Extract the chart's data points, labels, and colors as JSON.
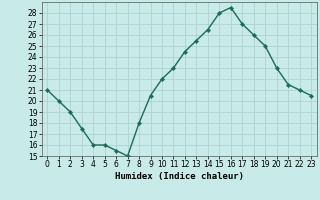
{
  "x": [
    0,
    1,
    2,
    3,
    4,
    5,
    6,
    7,
    8,
    9,
    10,
    11,
    12,
    13,
    14,
    15,
    16,
    17,
    18,
    19,
    20,
    21,
    22,
    23
  ],
  "y": [
    21,
    20,
    19,
    17.5,
    16,
    16,
    15.5,
    15,
    18,
    20.5,
    22,
    23,
    24.5,
    25.5,
    26.5,
    28,
    28.5,
    27,
    26,
    25,
    23,
    21.5,
    21,
    20.5
  ],
  "xlabel": "Humidex (Indice chaleur)",
  "xlim": [
    -0.5,
    23.5
  ],
  "ylim": [
    15,
    29
  ],
  "yticks": [
    15,
    16,
    17,
    18,
    19,
    20,
    21,
    22,
    23,
    24,
    25,
    26,
    27,
    28
  ],
  "xticks": [
    0,
    1,
    2,
    3,
    4,
    5,
    6,
    7,
    8,
    9,
    10,
    11,
    12,
    13,
    14,
    15,
    16,
    17,
    18,
    19,
    20,
    21,
    22,
    23
  ],
  "bg_color": "#c8eae8",
  "line_color": "#1a6b5a",
  "grid_color": "#a8cece",
  "markersize": 2.2,
  "linewidth": 1.0,
  "xlabel_fontsize": 6.5,
  "tick_fontsize": 5.5
}
